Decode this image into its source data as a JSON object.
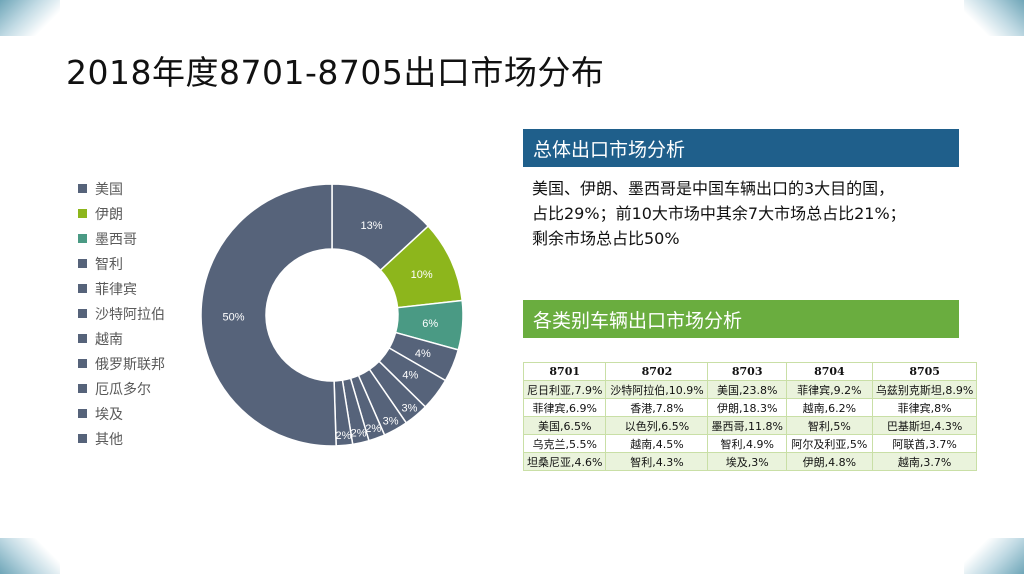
{
  "title": "2018年度8701-8705出口市场分布",
  "chart_data": {
    "type": "pie",
    "variant": "donut",
    "categories": [
      "美国",
      "伊朗",
      "墨西哥",
      "智利",
      "菲律宾",
      "沙特阿拉伯",
      "越南",
      "俄罗斯联邦",
      "厄瓜多尔",
      "埃及",
      "其他"
    ],
    "values": [
      13,
      10,
      6,
      4,
      4,
      3,
      3,
      2,
      2,
      2,
      50
    ],
    "labels": [
      "13%",
      "10%",
      "6%",
      "4%",
      "4%",
      "3%",
      "3%",
      "2%",
      "2%",
      "2%",
      "50%"
    ],
    "colors": [
      "#56637a",
      "#8db61c",
      "#4a9a84",
      "#56637a",
      "#56637a",
      "#56637a",
      "#56637a",
      "#56637a",
      "#56637a",
      "#56637a",
      "#56637a"
    ],
    "legend_position": "left"
  },
  "panel1": {
    "heading": "总体出口市场分析",
    "lines": [
      "美国、伊朗、墨西哥是中国车辆出口的3大目的国，",
      "占比29%；前10大市场中其余7大市场总占比21%；",
      "剩余市场总占比50%"
    ]
  },
  "panel2": {
    "heading": "各类别车辆出口市场分析"
  },
  "table": {
    "headers": [
      "8701",
      "8702",
      "8703",
      "8704",
      "8705"
    ],
    "rows": [
      [
        "尼日利亚,7.9%",
        "沙特阿拉伯,10.9%",
        "美国,23.8%",
        "菲律宾,9.2%",
        "乌兹别克斯坦,8.9%"
      ],
      [
        "菲律宾,6.9%",
        "香港,7.8%",
        "伊朗,18.3%",
        "越南,6.2%",
        "菲律宾,8%"
      ],
      [
        "美国,6.5%",
        "以色列,6.5%",
        "墨西哥,11.8%",
        "智利,5%",
        "巴基斯坦,4.3%"
      ],
      [
        "乌克兰,5.5%",
        "越南,4.5%",
        "智利,4.9%",
        "阿尔及利亚,5%",
        "阿联酋,3.7%"
      ],
      [
        "坦桑尼亚,4.6%",
        "智利,4.3%",
        "埃及,3%",
        "伊朗,4.8%",
        "越南,3.7%"
      ]
    ]
  },
  "theme": {
    "header_blue": "#1f5f8b",
    "header_green": "#6aad3f",
    "table_border": "#c9dfa6",
    "table_stripe": "#eaf3dc"
  }
}
